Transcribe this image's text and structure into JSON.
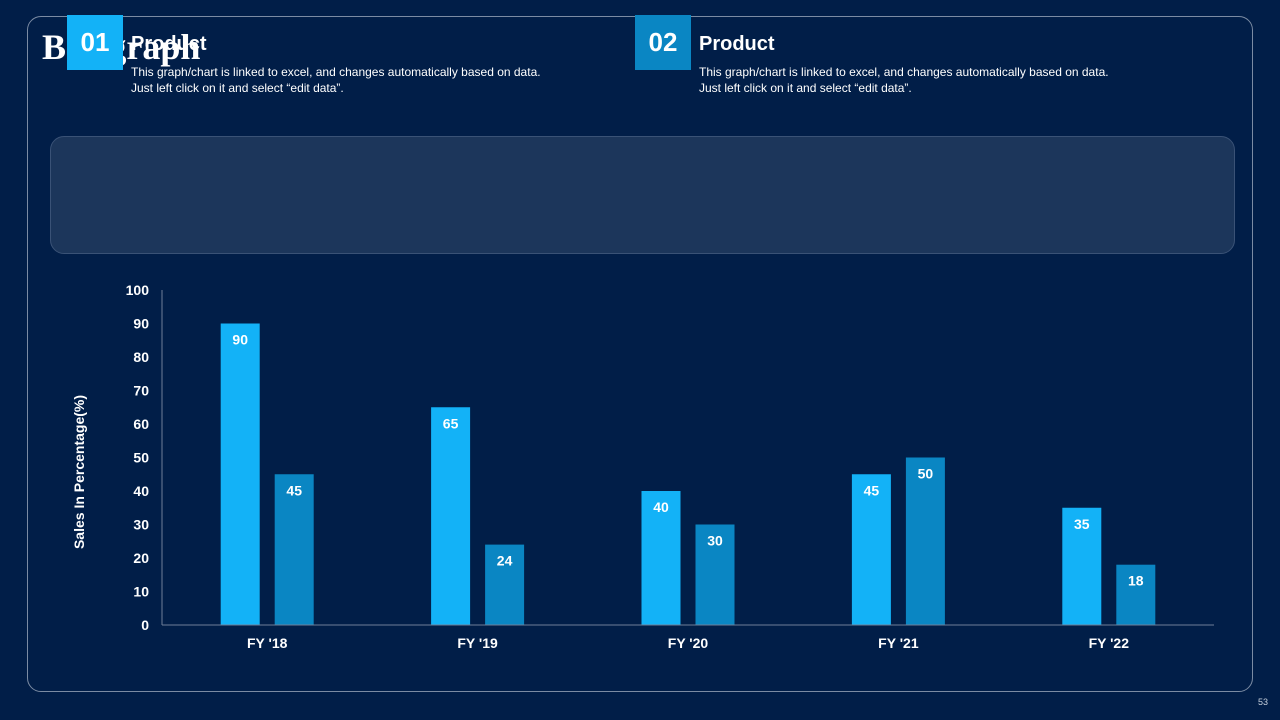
{
  "slide": {
    "title": "Bar graph",
    "page_number": "53"
  },
  "cards": [
    {
      "number": "01",
      "heading": "Product",
      "text": "This graph/chart is linked to excel, and changes automatically based on data. Just left click on it and select “edit data”."
    },
    {
      "number": "02",
      "heading": "Product",
      "text": "This graph/chart is linked to excel, and changes automatically based on data. Just left click on it and select “edit data”."
    }
  ],
  "colors": {
    "series1": "#13b2f7",
    "series2": "#0a86c3",
    "background": "#011e48",
    "text": "#ffffff"
  },
  "chart_data": {
    "type": "bar",
    "title": "",
    "xlabel": "",
    "ylabel": "Sales In Percentage(%)",
    "ylim": [
      0,
      100
    ],
    "yticks": [
      0,
      10,
      20,
      30,
      40,
      50,
      60,
      70,
      80,
      90,
      100
    ],
    "categories": [
      "FY '18",
      "FY '19",
      "FY '20",
      "FY '21",
      "FY '22"
    ],
    "series": [
      {
        "name": "Product 01",
        "values": [
          90,
          65,
          40,
          45,
          35
        ]
      },
      {
        "name": "Product 02",
        "values": [
          45,
          24,
          30,
          50,
          18
        ]
      }
    ],
    "grid": false,
    "legend": "none"
  }
}
